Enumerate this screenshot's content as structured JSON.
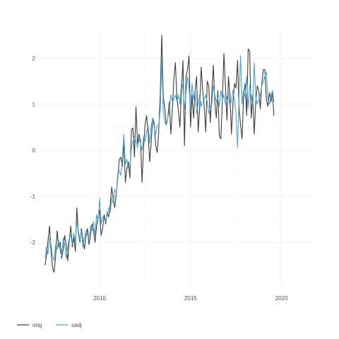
{
  "chart_data": {
    "type": "line",
    "title": "",
    "xlabel": "",
    "ylabel": "",
    "xlim": [
      2006.7,
      2021.8
    ],
    "ylim": [
      -2.95,
      2.65
    ],
    "x_ticks": [
      2010,
      2015,
      2020
    ],
    "y_ticks": [
      -2,
      -1,
      0,
      1,
      2
    ],
    "x_tick_labels": [
      "2010",
      "2015",
      "2020"
    ],
    "y_tick_labels": [
      "-2",
      "-1",
      "0",
      "1",
      "2"
    ],
    "grid": true,
    "legend_position": "bottom-left",
    "series": [
      {
        "name": "orig",
        "color": "#3d3d3d",
        "x_start": 2007.0,
        "x_step": 0.08333,
        "values": [
          -2.5,
          -2.3,
          -1.95,
          -1.65,
          -2.2,
          -2.55,
          -2.65,
          -2.3,
          -1.75,
          -2.1,
          -2.0,
          -2.35,
          -2.15,
          -1.85,
          -2.05,
          -2.4,
          -1.95,
          -1.65,
          -2.1,
          -1.9,
          -2.2,
          -1.25,
          -1.8,
          -2.0,
          -1.7,
          -1.95,
          -2.15,
          -1.85,
          -1.7,
          -2.05,
          -1.85,
          -1.6,
          -1.75,
          -2.0,
          -1.65,
          -1.45,
          -1.3,
          -1.85,
          -1.7,
          -1.4,
          -1.6,
          -1.35,
          -1.45,
          -1.2,
          -0.8,
          -1.05,
          -1.25,
          -0.95,
          -0.6,
          -0.2,
          -0.15,
          -0.35,
          0.2,
          -0.7,
          -0.4,
          -0.25,
          -0.6,
          0.45,
          0.48,
          -0.15,
          0.95,
          0.15,
          0.35,
          0.2,
          -0.7,
          0.05,
          0.55,
          0.75,
          0.4,
          -0.25,
          0.15,
          0.7,
          0.6,
          0.1,
          -0.05,
          0.4,
          1.2,
          2.5,
          1.15,
          0.9,
          0.55,
          0.7,
          1.05,
          0.35,
          0.9,
          1.55,
          1.9,
          1.15,
          0.85,
          0.5,
          1.3,
          1.95,
          0.1,
          1.6,
          1.75,
          2.05,
          0.5,
          1.2,
          0.7,
          1.3,
          1.6,
          0.4,
          0.9,
          1.8,
          1.3,
          0.95,
          0.4,
          1.5,
          1.4,
          0.6,
          1.2,
          1.85,
          1.05,
          0.7,
          1.3,
          0.3,
          0.25,
          1.1,
          2.1,
          1.4,
          0.65,
          1.6,
          1.2,
          0.35,
          1.05,
          1.45,
          1.35,
          1.95,
          0.9,
          0.55,
          0.25,
          1.2,
          1.45,
          0.75,
          2.2,
          2.15,
          0.7,
          1.2,
          0.35,
          1.05,
          1.4,
          1.3,
          0.9,
          1.45,
          1.75,
          1.75,
          1.1,
          0.95,
          1.25,
          1.05,
          1.25,
          0.75
        ]
      },
      {
        "name": "sadj",
        "color": "#4aa3d8",
        "x_start": 2007.0,
        "x_step": 0.08333,
        "values": [
          -2.35,
          -2.1,
          -2.25,
          -1.9,
          -2.05,
          -2.3,
          -2.4,
          -2.05,
          -2.15,
          -1.95,
          -2.2,
          -2.3,
          -1.9,
          -2.05,
          -2.35,
          -2.1,
          -1.9,
          -1.85,
          -2.05,
          -1.8,
          -2.0,
          -1.55,
          -1.75,
          -1.95,
          -1.75,
          -2.1,
          -1.9,
          -1.75,
          -1.85,
          -1.9,
          -1.65,
          -1.75,
          -1.55,
          -1.85,
          -1.4,
          -1.55,
          -1.05,
          -1.6,
          -1.45,
          -1.5,
          -1.55,
          -1.4,
          -1.25,
          -1.35,
          -1.05,
          -1.15,
          -0.85,
          -0.95,
          -0.5,
          -0.45,
          -0.55,
          -0.2,
          0.35,
          -0.3,
          -0.2,
          -0.4,
          -0.35,
          0.05,
          0.2,
          0.3,
          0.2,
          0.05,
          0.25,
          0.15,
          0.0,
          0.3,
          0.2,
          0.4,
          0.55,
          0.15,
          0.5,
          0.7,
          0.5,
          0.35,
          0.55,
          0.55,
          0.85,
          2.0,
          0.85,
          0.6,
          0.55,
          0.7,
          0.85,
          1.2,
          1.05,
          1.1,
          1.2,
          1.05,
          1.2,
          1.0,
          1.5,
          1.35,
          0.9,
          1.25,
          1.6,
          1.35,
          0.9,
          1.45,
          1.1,
          1.3,
          0.8,
          1.0,
          1.2,
          0.95,
          1.05,
          1.1,
          1.2,
          1.05,
          0.8,
          0.95,
          1.0,
          1.4,
          1.2,
          1.05,
          1.15,
          0.95,
          1.3,
          1.1,
          1.2,
          1.0,
          1.15,
          1.25,
          0.95,
          1.1,
          1.3,
          1.05,
          0.8,
          0.05,
          1.2,
          2.05,
          1.0,
          1.3,
          1.15,
          1.6,
          0.9,
          1.4,
          1.2,
          0.95,
          1.9,
          1.15,
          1.0,
          1.1,
          1.2,
          1.4,
          1.5,
          1.6,
          1.7,
          1.1,
          1.0,
          1.2,
          1.3,
          1.05
        ]
      }
    ]
  }
}
